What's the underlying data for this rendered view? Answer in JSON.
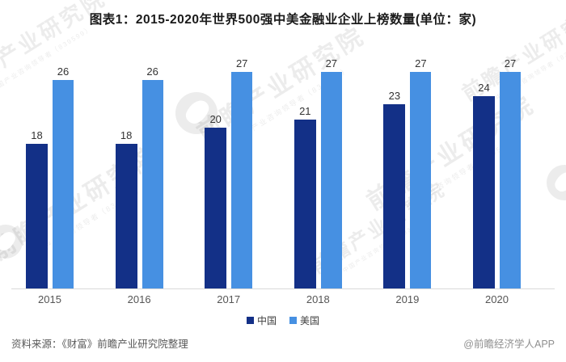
{
  "title": "图表1：2015-2020年世界500强中美金融业企业上榜数量(单位：家)",
  "chart_data": {
    "type": "bar",
    "title": "图表1：2015-2020年世界500强中美金融业企业上榜数量(单位：家)",
    "unit": "家",
    "categories": [
      "2015",
      "2016",
      "2017",
      "2018",
      "2019",
      "2020"
    ],
    "series": [
      {
        "name": "中国",
        "color": "#133087",
        "values": [
          18,
          18,
          20,
          21,
          23,
          24
        ]
      },
      {
        "name": "美国",
        "color": "#4690e2",
        "values": [
          26,
          26,
          27,
          27,
          27,
          27
        ]
      }
    ],
    "xlabel": "",
    "ylabel": "",
    "ylim": [
      0,
      28
    ],
    "grid": false,
    "value_labels": true,
    "legend_position": "bottom"
  },
  "footer": {
    "source": "资料来源：《财富》前瞻产业研究院整理",
    "credit": "@前瞻经济学人APP"
  },
  "watermark": {
    "line1": "前瞻产业研究院",
    "line2": "中国产业咨询领导者（839599）"
  },
  "colors": {
    "china_bar": "#133087",
    "usa_bar": "#4690e2",
    "axis_line": "#d9d9d9"
  }
}
